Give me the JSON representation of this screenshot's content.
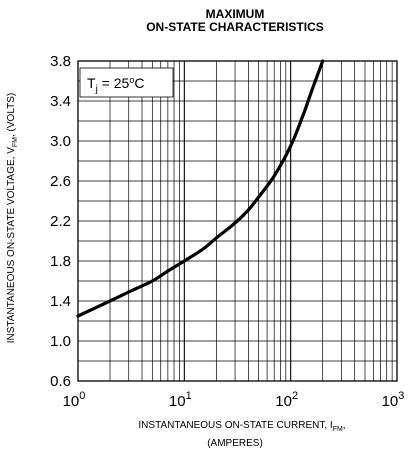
{
  "chart_data": {
    "type": "line",
    "title_line1": "MAXIMUM",
    "title_line2": "ON-STATE CHARACTERISTICS",
    "annotation": {
      "prefix": "T",
      "sub": "j",
      "rest": " = 25",
      "sup": "o",
      "unit": "C"
    },
    "x_scale": "log",
    "xlim": [
      1,
      1000
    ],
    "ylim": [
      0.6,
      3.8
    ],
    "grid": true,
    "x_ticks": [
      {
        "base": "10",
        "exp": "0"
      },
      {
        "base": "10",
        "exp": "1"
      },
      {
        "base": "10",
        "exp": "2"
      },
      {
        "base": "10",
        "exp": "3"
      }
    ],
    "y_ticks": [
      "0.6",
      "1.0",
      "1.4",
      "1.8",
      "2.2",
      "2.6",
      "3.0",
      "3.4",
      "3.8"
    ],
    "xlabel": {
      "pre": "INSTANTANEOUS ON-STATE CURRENT, I",
      "sub": "FM",
      "post": ",",
      "line2": "(AMPERES)"
    },
    "ylabel": {
      "pre": "INSTANTANEOUS ON-STATE VOLTAGE, V",
      "sub": "FM",
      "post": ", (VOLTS)"
    },
    "series": [
      {
        "x": [
          1,
          2,
          3,
          5,
          7,
          10,
          15,
          20,
          30,
          40,
          50,
          70,
          100,
          130,
          160,
          200
        ],
        "y": [
          1.25,
          1.4,
          1.49,
          1.6,
          1.7,
          1.8,
          1.92,
          2.03,
          2.18,
          2.31,
          2.44,
          2.65,
          2.95,
          3.25,
          3.52,
          3.8
        ]
      }
    ]
  }
}
